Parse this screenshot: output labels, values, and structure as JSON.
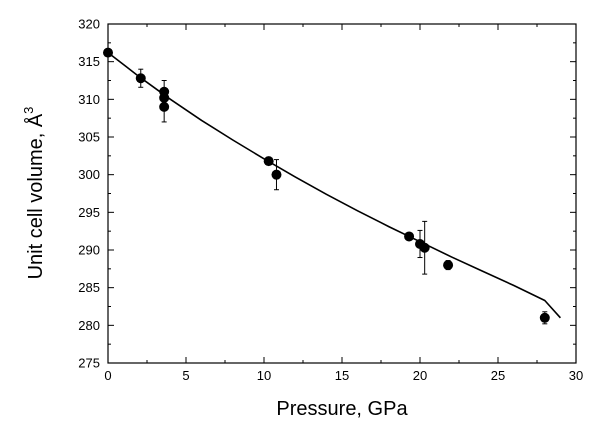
{
  "chart_data": {
    "type": "scatter",
    "title": "",
    "xlabel": "Pressure, GPa",
    "ylabel": "Unit cell volume, Å",
    "ylabel_superscript": "3",
    "xlim": [
      0,
      30
    ],
    "ylim": [
      275,
      320
    ],
    "x_ticks": [
      "0",
      "5",
      "10",
      "15",
      "20",
      "25",
      "30"
    ],
    "y_ticks": [
      "275",
      "280",
      "285",
      "290",
      "295",
      "300",
      "305",
      "310",
      "315",
      "320"
    ],
    "grid": false,
    "legend": "none",
    "series": [
      {
        "kind": "points",
        "color": "#000000",
        "points": [
          {
            "x": 0.0,
            "y": 316.2,
            "err": 0.5
          },
          {
            "x": 2.1,
            "y": 312.8,
            "err": 1.2
          },
          {
            "x": 3.6,
            "y": 311.0,
            "err": 1.5
          },
          {
            "x": 3.6,
            "y": 310.2,
            "err": 1.2
          },
          {
            "x": 3.6,
            "y": 309.0,
            "err": 2.0
          },
          {
            "x": 10.3,
            "y": 301.8,
            "err": 0.5
          },
          {
            "x": 10.8,
            "y": 300.0,
            "err": 2.0
          },
          {
            "x": 19.3,
            "y": 291.8,
            "err": 0.3
          },
          {
            "x": 20.0,
            "y": 290.8,
            "err": 1.8
          },
          {
            "x": 20.3,
            "y": 290.3,
            "err": 3.5
          },
          {
            "x": 21.8,
            "y": 288.0,
            "err": 0.6
          },
          {
            "x": 28.0,
            "y": 281.0,
            "err": 0.8
          }
        ]
      },
      {
        "kind": "fit-line",
        "color": "#000000",
        "x": [
          0,
          2,
          4,
          6,
          8,
          10,
          12,
          14,
          16,
          18,
          20,
          22,
          24,
          26,
          28,
          29
        ],
        "y": [
          316.2,
          313.0,
          310.0,
          307.2,
          304.6,
          302.1,
          299.7,
          297.4,
          295.2,
          293.1,
          291.1,
          289.1,
          287.2,
          285.3,
          283.3,
          281.0
        ]
      }
    ]
  }
}
